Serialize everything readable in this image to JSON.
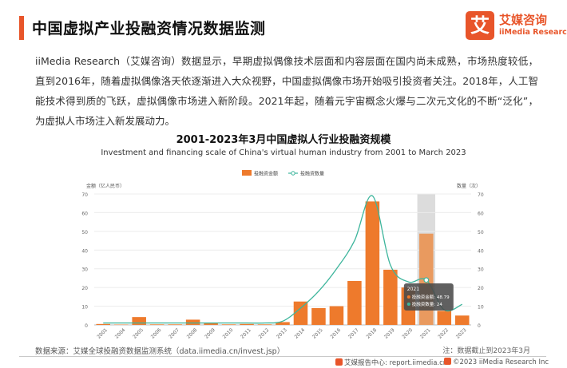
{
  "header": {
    "title": "中国虚拟产业投融资情况数据监测",
    "logo_mark": "艾",
    "logo_cn": "艾媒咨询",
    "logo_en": "iiMedia Research"
  },
  "intro": "iiMedia Research（艾媒咨询）数据显示，早期虚拟偶像技术层面和内容层面在国内尚未成熟，市场热度较低，直到2016年，随着虚拟偶像洛天依逐渐进入大众视野，中国虚拟偶像市场开始吸引投资者关注。2018年，人工智能技术得到质的飞跃，虚拟偶像市场进入新阶段。2021年起，随着元宇宙概念火爆与二次元文化的不断“泛化”，为虚拟人市场注入新发展动力。",
  "chart_data": {
    "type": "bar",
    "title": "2001-2023年3月中国虚拟人行业投融资规模",
    "subtitle": "Investment and financing scale of China's virtual human industry from 2001 to March 2023",
    "categories": [
      "2001",
      "2004",
      "2005",
      "2006",
      "2007",
      "2008",
      "2009",
      "2010",
      "2011",
      "2012",
      "2013",
      "2014",
      "2015",
      "2016",
      "2017",
      "2018",
      "2019",
      "2020",
      "2021",
      "2022",
      "2023"
    ],
    "series": [
      {
        "name": "投融资金额",
        "type": "bar",
        "axis": "left",
        "color": "#ee7a2c",
        "values": [
          0.5,
          0.2,
          4.2,
          0.3,
          0.3,
          2.8,
          1.0,
          0.3,
          0.5,
          0.3,
          1.5,
          12.5,
          9.0,
          10.0,
          23.5,
          66.0,
          29.5,
          20.0,
          48.79,
          7.5,
          5.0
        ]
      },
      {
        "name": "投融资数量",
        "type": "line",
        "axis": "right",
        "color": "#3db59c",
        "values": [
          1,
          1,
          1,
          1,
          1,
          1,
          1,
          1,
          1,
          1,
          2,
          9,
          18,
          30,
          45,
          69,
          32,
          23,
          24,
          8,
          11
        ]
      }
    ],
    "ylabel_left": "金额（亿人民币）",
    "ylabel_right": "数量（次）",
    "ylim_left": [
      0,
      70
    ],
    "ylim_right": [
      0,
      70
    ],
    "yticks": [
      0,
      10,
      20,
      30,
      40,
      50,
      60,
      70
    ],
    "legend_position": "top-center",
    "highlight_category": "2021",
    "tooltip": {
      "title": "2021",
      "rows": [
        "投融资金额: 48.79",
        "投融资数量: 24"
      ]
    }
  },
  "footer": {
    "source": "数据来源：艾媒全球投融资数据监测系统（data.iimedia.cn/invest.jsp）",
    "note": "注：数据截止到2023年3月",
    "site": "艾媒报告中心: report.iimedia.cn",
    "copyright": "©2023  iiMedia Research  Inc"
  }
}
